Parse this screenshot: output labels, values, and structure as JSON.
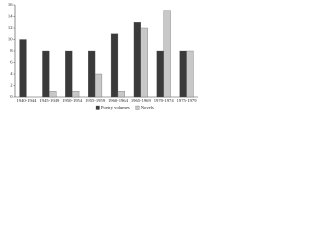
{
  "chart_data": {
    "type": "bar",
    "categories": [
      "1940-1944",
      "1945-1949",
      "1950-1954",
      "1955-1959",
      "1960-1964",
      "1965-1969",
      "1970-1974",
      "1975-1979"
    ],
    "series": [
      {
        "name": "Poetry volumes",
        "color": "#3a3a3a",
        "values": [
          10,
          8,
          8,
          8,
          11,
          13,
          8,
          8
        ]
      },
      {
        "name": "Novels",
        "color": "#c8c8c8",
        "values": [
          0,
          1,
          1,
          4,
          1,
          12,
          15,
          8
        ]
      }
    ],
    "ylim": [
      0,
      16
    ],
    "yticks": [
      0,
      2,
      4,
      6,
      8,
      10,
      12,
      14,
      16
    ],
    "grid": false
  }
}
